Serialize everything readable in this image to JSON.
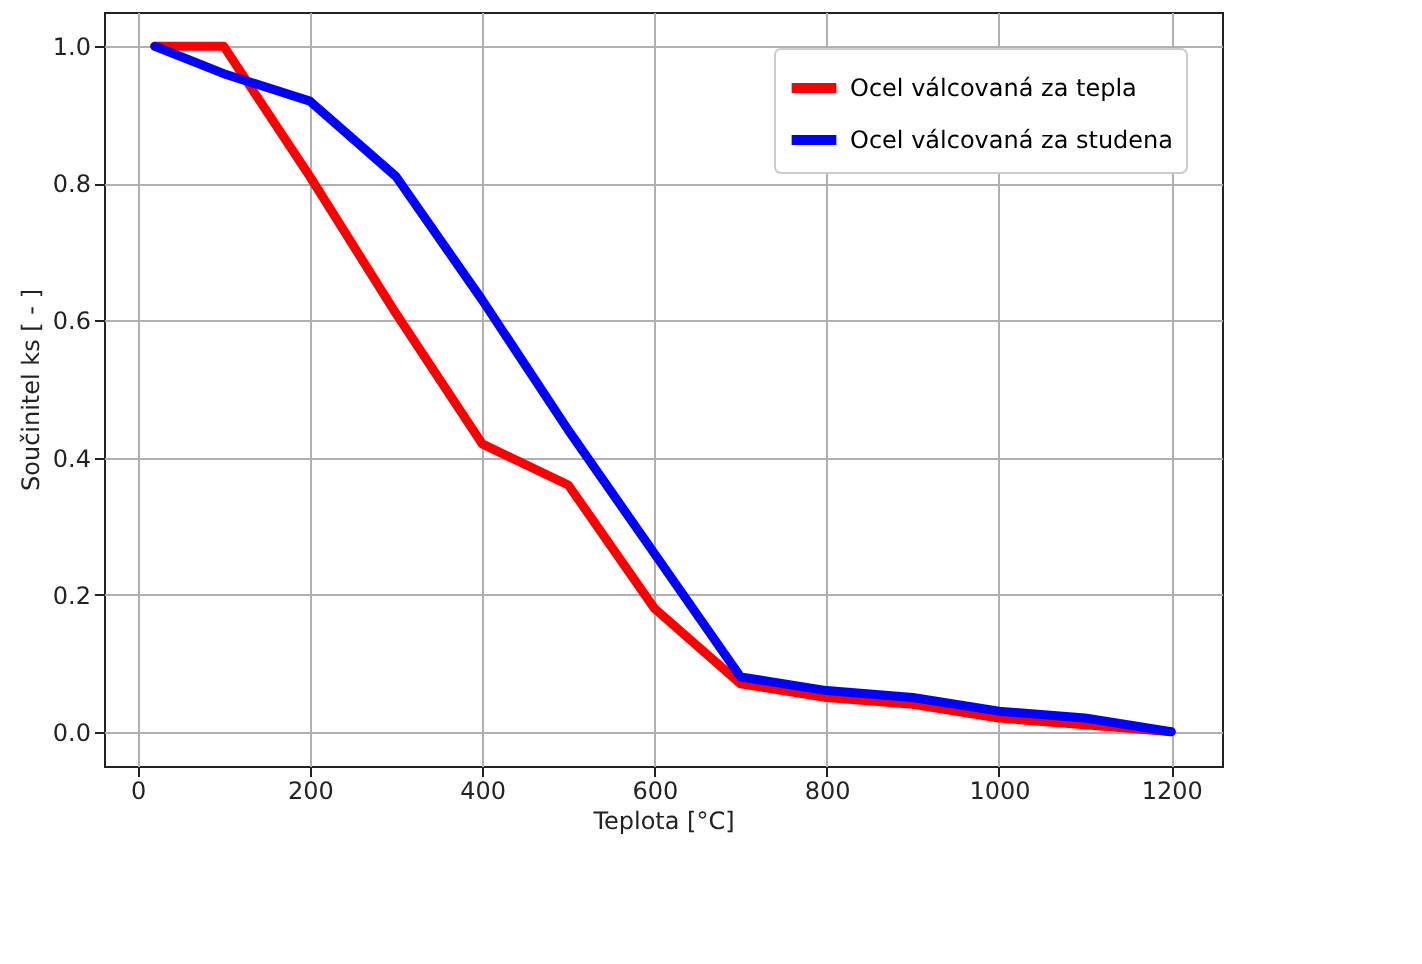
{
  "chart_data": {
    "type": "line",
    "xlabel": "Teplota [°C]",
    "ylabel": "Součinitel ks [ - ]",
    "x": [
      20,
      100,
      200,
      300,
      400,
      500,
      600,
      700,
      800,
      900,
      1000,
      1100,
      1200
    ],
    "series": [
      {
        "name": "Ocel válcovaná za tepla",
        "color": "#ff0000",
        "values": [
          1.0,
          1.0,
          0.81,
          0.61,
          0.42,
          0.36,
          0.18,
          0.07,
          0.05,
          0.04,
          0.02,
          0.01,
          0.0
        ]
      },
      {
        "name": "Ocel válcovaná za studena",
        "color": "#0000ff",
        "values": [
          1.0,
          0.96,
          0.92,
          0.81,
          0.63,
          0.44,
          0.26,
          0.08,
          0.06,
          0.05,
          0.03,
          0.02,
          0.0
        ]
      }
    ],
    "xlim": [
      -39,
      1259
    ],
    "xticks": [
      0,
      200,
      400,
      600,
      800,
      1000,
      1200
    ],
    "ylim": [
      -0.05,
      1.05
    ],
    "yticks": [
      {
        "value": 0,
        "label": "0.0"
      },
      {
        "value": 0.2,
        "label": "0.2"
      },
      {
        "value": 0.4,
        "label": "0.4"
      },
      {
        "value": 0.6,
        "label": "0.6"
      },
      {
        "value": 0.8,
        "label": "0.8"
      },
      {
        "value": 1.0,
        "label": "1.0"
      }
    ],
    "grid": true,
    "legend": "top right",
    "line_style": "solid"
  }
}
